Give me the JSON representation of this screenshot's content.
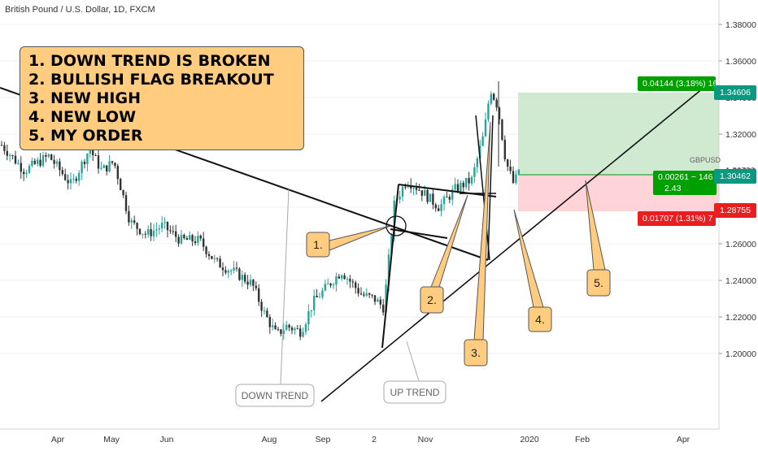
{
  "header": {
    "ticker": "British Pound / U.S. Dollar, 1D, FXCM"
  },
  "notes": [
    "1. DOWN TREND IS BROKEN",
    "2. BULLISH FLAG BREAKOUT",
    "3. NEW HIGH",
    "4. NEW LOW",
    "5. MY ORDER"
  ],
  "callouts": [
    {
      "text": "1.",
      "color": "#ffcc80"
    },
    {
      "text": "2.",
      "color": "#ffcc80"
    },
    {
      "text": "3.",
      "color": "#ffcc80"
    },
    {
      "text": "4.",
      "color": "#ffcc80"
    },
    {
      "text": "5.",
      "color": "#ffcc80"
    }
  ],
  "trend_labels": [
    "DOWN TREND",
    "UP TREND"
  ],
  "price_labels": {
    "target": "1.34606",
    "current": "1.30462",
    "stop": "1.28755",
    "hidden_symbol": "GBPUSD",
    "hidden_value": "1.30733"
  },
  "position": {
    "target_text": "0.04144 (3.18%) 16",
    "entry_text": "0.00261 ~ 146",
    "entry_ratio": "2.43",
    "stop_text": "0.01707 (1.31%) 7",
    "profit_color": "#4caf50",
    "loss_color": "#f44336"
  },
  "colors": {
    "up": "#26a69a",
    "down": "#333333",
    "price_green": "#089981",
    "price_red": "#e91e1e",
    "label_green": "#00a000",
    "callout_fill": "#ffcc80"
  },
  "chart_data": {
    "type": "candlestick",
    "title": "British Pound / U.S. Dollar, 1D, FXCM",
    "x_ticks": [
      "Apr",
      "May",
      "Jun",
      "Aug",
      "Sep",
      "2",
      "Nov",
      "2020",
      "Feb",
      "Apr"
    ],
    "y_ticks": [
      "1.38000",
      "1.36000",
      "1.34000",
      "1.32000",
      "1.30000",
      "1.28000",
      "1.26000",
      "1.24000",
      "1.22000",
      "1.20000"
    ],
    "ylim": [
      1.18,
      1.395
    ],
    "trend_lines": [
      {
        "name": "DOWN TREND",
        "from": [
          "2019-03-08",
          1.327
        ],
        "to": [
          "2019-11-15",
          1.263
        ]
      },
      {
        "name": "UP TREND",
        "from": [
          "2019-09-03",
          1.195
        ],
        "to": [
          "2020-03-05",
          1.346
        ]
      }
    ],
    "series": [
      {
        "name": "GBPUSD",
        "approx_daily_closes_by_month": {
          "2019-03": 1.31,
          "2019-04": 1.305,
          "2019-05": 1.29,
          "2019-06": 1.265,
          "2019-07": 1.245,
          "2019-08": 1.21,
          "2019-09": 1.225,
          "2019-10": 1.29,
          "2019-11": 1.29,
          "2019-12": 1.32,
          "2020-01": 1.305
        }
      }
    ]
  }
}
